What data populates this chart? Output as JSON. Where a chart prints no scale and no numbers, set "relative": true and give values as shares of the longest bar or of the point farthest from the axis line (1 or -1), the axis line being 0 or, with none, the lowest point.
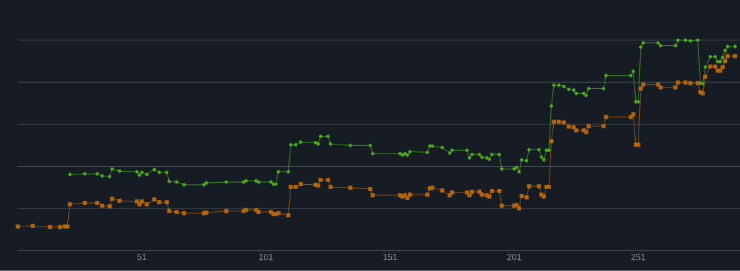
{
  "chart_data": {
    "type": "line",
    "relative": true,
    "grid": "y",
    "tick_labels": "x",
    "line_style": "solid",
    "xlim": [
      1,
      292
    ],
    "xticks": [
      51,
      101,
      151,
      201,
      251
    ],
    "x": [
      1,
      7,
      14,
      18,
      20,
      21,
      22,
      28,
      33,
      35,
      38,
      39,
      42,
      49,
      50,
      51,
      53,
      56,
      58,
      61,
      62,
      65,
      68,
      76,
      77,
      85,
      92,
      93,
      97,
      98,
      103,
      104,
      105,
      106,
      110,
      111,
      113,
      115,
      121,
      122,
      123,
      126,
      127,
      135,
      143,
      144,
      155,
      156,
      157,
      158,
      159,
      166,
      167,
      168,
      172,
      175,
      176,
      182,
      183,
      184,
      187,
      188,
      190,
      191,
      192,
      195,
      196,
      201,
      202,
      203,
      204,
      206,
      207,
      211,
      212,
      213,
      214,
      215,
      216,
      217,
      219,
      221,
      223,
      225,
      226,
      229,
      230,
      231,
      237,
      238,
      248,
      249,
      250,
      251,
      252,
      253,
      259,
      260,
      266,
      267,
      270,
      272,
      275,
      276,
      277,
      278,
      280,
      282,
      283,
      284,
      285,
      286,
      287,
      290
    ],
    "series": [
      {
        "color": "#4caf1a",
        "marker": "circle",
        "values": [
          null,
          null,
          null,
          null,
          null,
          null,
          0.362,
          0.365,
          0.365,
          0.355,
          0.352,
          0.388,
          0.378,
          0.375,
          0.359,
          0.372,
          0.362,
          0.385,
          0.372,
          0.372,
          0.329,
          0.326,
          0.313,
          0.313,
          0.322,
          0.326,
          0.326,
          0.332,
          0.332,
          0.326,
          0.326,
          0.316,
          0.316,
          0.375,
          0.375,
          0.503,
          0.503,
          0.516,
          0.513,
          0.507,
          0.543,
          0.543,
          0.507,
          0.5,
          0.5,
          0.461,
          0.461,
          0.454,
          0.461,
          0.454,
          0.47,
          0.467,
          0.497,
          0.497,
          0.49,
          0.464,
          0.477,
          0.477,
          0.441,
          0.457,
          0.457,
          0.444,
          0.441,
          0.434,
          0.457,
          0.457,
          0.388,
          0.388,
          0.395,
          0.375,
          0.431,
          0.428,
          0.48,
          0.48,
          0.444,
          0.431,
          0.477,
          0.477,
          0.688,
          0.786,
          0.786,
          0.78,
          0.766,
          0.763,
          0.747,
          0.747,
          0.737,
          0.77,
          0.77,
          0.832,
          0.832,
          0.852,
          0.707,
          0.707,
          0.967,
          0.987,
          0.987,
          0.974,
          0.974,
          1,
          1,
          0.997,
          1,
          0.796,
          0.793,
          0.872,
          0.921,
          0.921,
          0.898,
          0.898,
          0.918,
          0.951,
          0.97,
          0.97
        ]
      },
      {
        "color": "#b8660a",
        "marker": "square",
        "values": [
          0.115,
          0.118,
          0.112,
          0.112,
          0.115,
          0.115,
          0.22,
          0.227,
          0.227,
          0.214,
          0.211,
          0.247,
          0.237,
          0.234,
          0.22,
          0.234,
          0.22,
          0.243,
          0.23,
          0.23,
          0.188,
          0.184,
          0.178,
          0.178,
          0.181,
          0.188,
          0.188,
          0.194,
          0.194,
          0.184,
          0.184,
          0.174,
          0.174,
          0.178,
          0.168,
          0.303,
          0.303,
          0.316,
          0.313,
          0.309,
          0.336,
          0.336,
          0.303,
          0.299,
          0.293,
          0.263,
          0.263,
          0.257,
          0.263,
          0.25,
          0.266,
          0.266,
          0.296,
          0.299,
          0.286,
          0.263,
          0.276,
          0.276,
          0.263,
          0.28,
          0.28,
          0.266,
          0.263,
          0.257,
          0.283,
          0.283,
          0.214,
          0.214,
          0.217,
          0.201,
          0.26,
          0.253,
          0.306,
          0.306,
          0.266,
          0.257,
          0.303,
          0.303,
          0.52,
          0.612,
          0.612,
          0.609,
          0.589,
          0.586,
          0.572,
          0.572,
          0.563,
          0.592,
          0.592,
          0.635,
          0.635,
          0.648,
          0.503,
          0.503,
          0.77,
          0.789,
          0.789,
          0.776,
          0.776,
          0.799,
          0.799,
          0.796,
          0.796,
          0.753,
          0.747,
          0.826,
          0.875,
          0.875,
          0.855,
          0.855,
          0.872,
          0.901,
          0.924,
          0.924
        ]
      }
    ]
  }
}
